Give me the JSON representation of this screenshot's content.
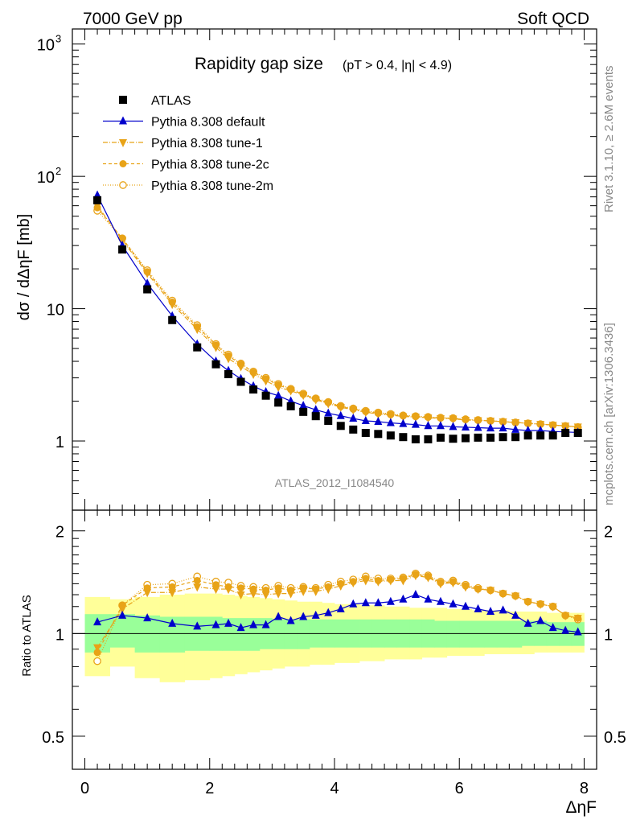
{
  "header": {
    "left": "7000 GeV pp",
    "right": "Soft QCD"
  },
  "side_labels": {
    "rivet": "Rivet 3.1.10, ≥ 2.6M events",
    "mcplots": "mcplots.cern.ch [arXiv:1306.3436]"
  },
  "colors": {
    "atlas": "#000000",
    "default": "#0000cc",
    "tunes": "#e8a317",
    "band_inner": "#99ff99",
    "band_outer": "#ffff99"
  },
  "chart_data": [
    {
      "type": "scatter",
      "title": "Rapidity gap size",
      "subtitle": "(pT > 0.4, |η| < 4.9)",
      "analysis_label": "ATLAS_2012_I1084540",
      "ylabel": "dσ / dΔηF [mb]",
      "yscale": "log",
      "xlim": [
        -0.2,
        8.2
      ],
      "ylim": [
        0.3,
        1300
      ],
      "y_ticks": [
        {
          "value": 1,
          "label": "1"
        },
        {
          "value": 10,
          "label": "10"
        },
        {
          "value": 100,
          "label": "10",
          "exp": "2"
        },
        {
          "value": 1000,
          "label": "10",
          "exp": "3"
        }
      ],
      "legend": {
        "position": "top-left",
        "entries": [
          "ATLAS",
          "Pythia 8.308 default",
          "Pythia 8.308 tune-1",
          "Pythia 8.308 tune-2c",
          "Pythia 8.308 tune-2m"
        ]
      },
      "x": [
        0.2,
        0.6,
        1.0,
        1.4,
        1.8,
        2.1,
        2.3,
        2.5,
        2.7,
        2.9,
        3.1,
        3.3,
        3.5,
        3.7,
        3.9,
        4.1,
        4.3,
        4.5,
        4.7,
        4.9,
        5.1,
        5.3,
        5.5,
        5.7,
        5.9,
        6.1,
        6.3,
        6.5,
        6.7,
        6.9,
        7.1,
        7.3,
        7.5,
        7.7,
        7.9
      ],
      "series": [
        {
          "name": "ATLAS",
          "marker": "square",
          "values": [
            66,
            28,
            14,
            8.2,
            5.1,
            3.8,
            3.2,
            2.8,
            2.45,
            2.2,
            1.95,
            1.83,
            1.66,
            1.54,
            1.42,
            1.3,
            1.22,
            1.15,
            1.13,
            1.1,
            1.07,
            1.03,
            1.03,
            1.06,
            1.04,
            1.05,
            1.06,
            1.06,
            1.07,
            1.07,
            1.1,
            1.1,
            1.1,
            1.15,
            1.15
          ]
        },
        {
          "name": "Pythia 8.308 default",
          "marker": "triangle-up",
          "values": [
            72,
            30,
            15.5,
            8.8,
            5.4,
            4.0,
            3.4,
            2.95,
            2.6,
            2.35,
            2.2,
            2.0,
            1.85,
            1.72,
            1.62,
            1.55,
            1.48,
            1.42,
            1.4,
            1.37,
            1.35,
            1.33,
            1.3,
            1.3,
            1.28,
            1.27,
            1.26,
            1.25,
            1.25,
            1.22,
            1.2,
            1.2,
            1.18,
            1.17,
            1.16
          ]
        },
        {
          "name": "Pythia 8.308 tune-1",
          "marker": "triangle-down",
          "values": [
            60,
            33,
            18.5,
            10.8,
            7.0,
            5.1,
            4.2,
            3.65,
            3.2,
            2.85,
            2.55,
            2.4,
            2.22,
            2.05,
            1.92,
            1.8,
            1.72,
            1.65,
            1.6,
            1.57,
            1.53,
            1.52,
            1.5,
            1.48,
            1.47,
            1.44,
            1.43,
            1.42,
            1.4,
            1.38,
            1.36,
            1.34,
            1.32,
            1.3,
            1.28
          ]
        },
        {
          "name": "Pythia 8.308 tune-2c",
          "marker": "circle",
          "values": [
            58,
            34,
            19,
            11.2,
            7.3,
            5.3,
            4.4,
            3.8,
            3.3,
            2.95,
            2.65,
            2.45,
            2.25,
            2.08,
            1.95,
            1.82,
            1.74,
            1.67,
            1.62,
            1.58,
            1.55,
            1.53,
            1.51,
            1.49,
            1.48,
            1.45,
            1.43,
            1.42,
            1.4,
            1.38,
            1.36,
            1.34,
            1.32,
            1.3,
            1.28
          ]
        },
        {
          "name": "Pythia 8.308 tune-2m",
          "marker": "circle-open",
          "values": [
            55,
            34,
            19.5,
            11.5,
            7.5,
            5.4,
            4.5,
            3.85,
            3.35,
            3.0,
            2.7,
            2.48,
            2.28,
            2.1,
            1.97,
            1.84,
            1.76,
            1.69,
            1.64,
            1.6,
            1.56,
            1.54,
            1.52,
            1.5,
            1.49,
            1.46,
            1.44,
            1.42,
            1.4,
            1.38,
            1.36,
            1.34,
            1.32,
            1.3,
            1.27
          ]
        }
      ]
    },
    {
      "type": "scatter",
      "ylabel": "Ratio to ATLAS",
      "xlabel": "ΔηF",
      "yscale": "log",
      "xlim": [
        -0.2,
        8.2
      ],
      "ylim": [
        0.4,
        2.3
      ],
      "x_ticks": [
        0,
        2,
        4,
        6,
        8
      ],
      "y_ticks": [
        {
          "value": 0.5,
          "label": "0.5"
        },
        {
          "value": 1,
          "label": "1"
        },
        {
          "value": 2,
          "label": "2"
        }
      ],
      "bands": {
        "edges": [
          0.0,
          0.4,
          0.8,
          1.2,
          1.6,
          2.0,
          2.2,
          2.4,
          2.6,
          2.8,
          3.0,
          3.2,
          3.4,
          3.6,
          3.8,
          4.0,
          4.2,
          4.4,
          4.6,
          4.8,
          5.0,
          5.2,
          5.4,
          5.6,
          5.8,
          6.0,
          6.2,
          6.4,
          6.6,
          6.8,
          7.0,
          7.2,
          7.4,
          7.6,
          7.8,
          8.0
        ],
        "inner_low": [
          0.88,
          0.91,
          0.88,
          0.88,
          0.89,
          0.89,
          0.89,
          0.89,
          0.89,
          0.9,
          0.9,
          0.9,
          0.9,
          0.91,
          0.91,
          0.91,
          0.91,
          0.91,
          0.91,
          0.91,
          0.91,
          0.91,
          0.91,
          0.91,
          0.91,
          0.91,
          0.91,
          0.91,
          0.91,
          0.91,
          0.92,
          0.92,
          0.92,
          0.92,
          0.92
        ],
        "inner_high": [
          1.14,
          1.14,
          1.13,
          1.12,
          1.12,
          1.12,
          1.11,
          1.11,
          1.11,
          1.11,
          1.1,
          1.1,
          1.1,
          1.1,
          1.1,
          1.1,
          1.1,
          1.1,
          1.1,
          1.1,
          1.1,
          1.1,
          1.1,
          1.09,
          1.09,
          1.09,
          1.09,
          1.09,
          1.09,
          1.09,
          1.09,
          1.09,
          1.08,
          1.08,
          1.08
        ],
        "outer_low": [
          0.75,
          0.8,
          0.74,
          0.72,
          0.73,
          0.74,
          0.75,
          0.76,
          0.77,
          0.78,
          0.79,
          0.8,
          0.8,
          0.81,
          0.81,
          0.82,
          0.82,
          0.83,
          0.83,
          0.84,
          0.84,
          0.84,
          0.85,
          0.85,
          0.86,
          0.86,
          0.86,
          0.87,
          0.87,
          0.87,
          0.87,
          0.88,
          0.88,
          0.88,
          0.88
        ],
        "outer_high": [
          1.28,
          1.26,
          1.28,
          1.3,
          1.31,
          1.31,
          1.3,
          1.29,
          1.28,
          1.27,
          1.26,
          1.25,
          1.24,
          1.24,
          1.23,
          1.22,
          1.22,
          1.21,
          1.21,
          1.2,
          1.2,
          1.19,
          1.19,
          1.19,
          1.18,
          1.18,
          1.17,
          1.17,
          1.17,
          1.16,
          1.16,
          1.16,
          1.15,
          1.15,
          1.15
        ]
      },
      "series": [
        {
          "name": "Pythia 8.308 default",
          "marker": "triangle-up",
          "values": [
            1.08,
            1.13,
            1.11,
            1.07,
            1.05,
            1.06,
            1.07,
            1.04,
            1.06,
            1.06,
            1.12,
            1.09,
            1.12,
            1.13,
            1.15,
            1.18,
            1.22,
            1.23,
            1.23,
            1.24,
            1.26,
            1.3,
            1.26,
            1.24,
            1.22,
            1.2,
            1.18,
            1.16,
            1.17,
            1.13,
            1.07,
            1.09,
            1.04,
            1.02,
            1.01
          ]
        },
        {
          "name": "Pythia 8.308 tune-1",
          "marker": "triangle-down",
          "values": [
            0.91,
            1.18,
            1.32,
            1.32,
            1.37,
            1.35,
            1.35,
            1.3,
            1.31,
            1.3,
            1.31,
            1.31,
            1.33,
            1.33,
            1.35,
            1.38,
            1.41,
            1.43,
            1.42,
            1.43,
            1.43,
            1.48,
            1.46,
            1.4,
            1.41,
            1.37,
            1.35,
            1.34,
            1.31,
            1.29,
            1.24,
            1.22,
            1.2,
            1.13,
            1.11
          ]
        },
        {
          "name": "Pythia 8.308 tune-2c",
          "marker": "circle",
          "values": [
            0.88,
            1.21,
            1.36,
            1.37,
            1.43,
            1.39,
            1.37,
            1.36,
            1.35,
            1.34,
            1.36,
            1.34,
            1.36,
            1.35,
            1.37,
            1.4,
            1.42,
            1.45,
            1.43,
            1.44,
            1.45,
            1.49,
            1.47,
            1.41,
            1.42,
            1.38,
            1.35,
            1.34,
            1.31,
            1.29,
            1.24,
            1.22,
            1.2,
            1.13,
            1.11
          ]
        },
        {
          "name": "Pythia 8.308 tune-2m",
          "marker": "circle-open",
          "values": [
            0.83,
            1.21,
            1.39,
            1.4,
            1.47,
            1.42,
            1.41,
            1.38,
            1.37,
            1.36,
            1.38,
            1.36,
            1.37,
            1.36,
            1.39,
            1.42,
            1.44,
            1.47,
            1.45,
            1.45,
            1.46,
            1.5,
            1.48,
            1.42,
            1.43,
            1.39,
            1.36,
            1.34,
            1.31,
            1.29,
            1.24,
            1.22,
            1.2,
            1.13,
            1.1
          ]
        }
      ]
    }
  ]
}
